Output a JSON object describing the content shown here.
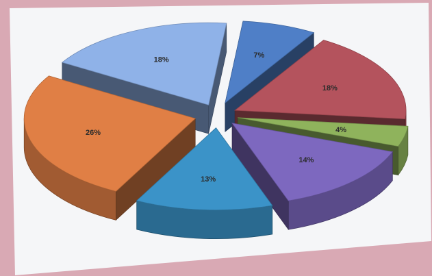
{
  "chart_data": {
    "type": "pie",
    "title": "",
    "legend": "none",
    "style": "3d-exploded",
    "slices": [
      {
        "label": "7%",
        "value": 7,
        "color": "#4f7fc7"
      },
      {
        "label": "18%",
        "value": 18,
        "color": "#b4535d"
      },
      {
        "label": "4%",
        "value": 4,
        "color": "#8fb35c"
      },
      {
        "label": "14%",
        "value": 14,
        "color": "#7d68bf"
      },
      {
        "label": "13%",
        "value": 13,
        "color": "#3b93c8"
      },
      {
        "label": "26%",
        "value": 26,
        "color": "#e07f45"
      },
      {
        "label": "18%",
        "value": 18,
        "color": "#8fb2e8"
      }
    ]
  },
  "colors": {
    "background": "#d9a9b4",
    "photo_paper": "#f5f6f8"
  }
}
